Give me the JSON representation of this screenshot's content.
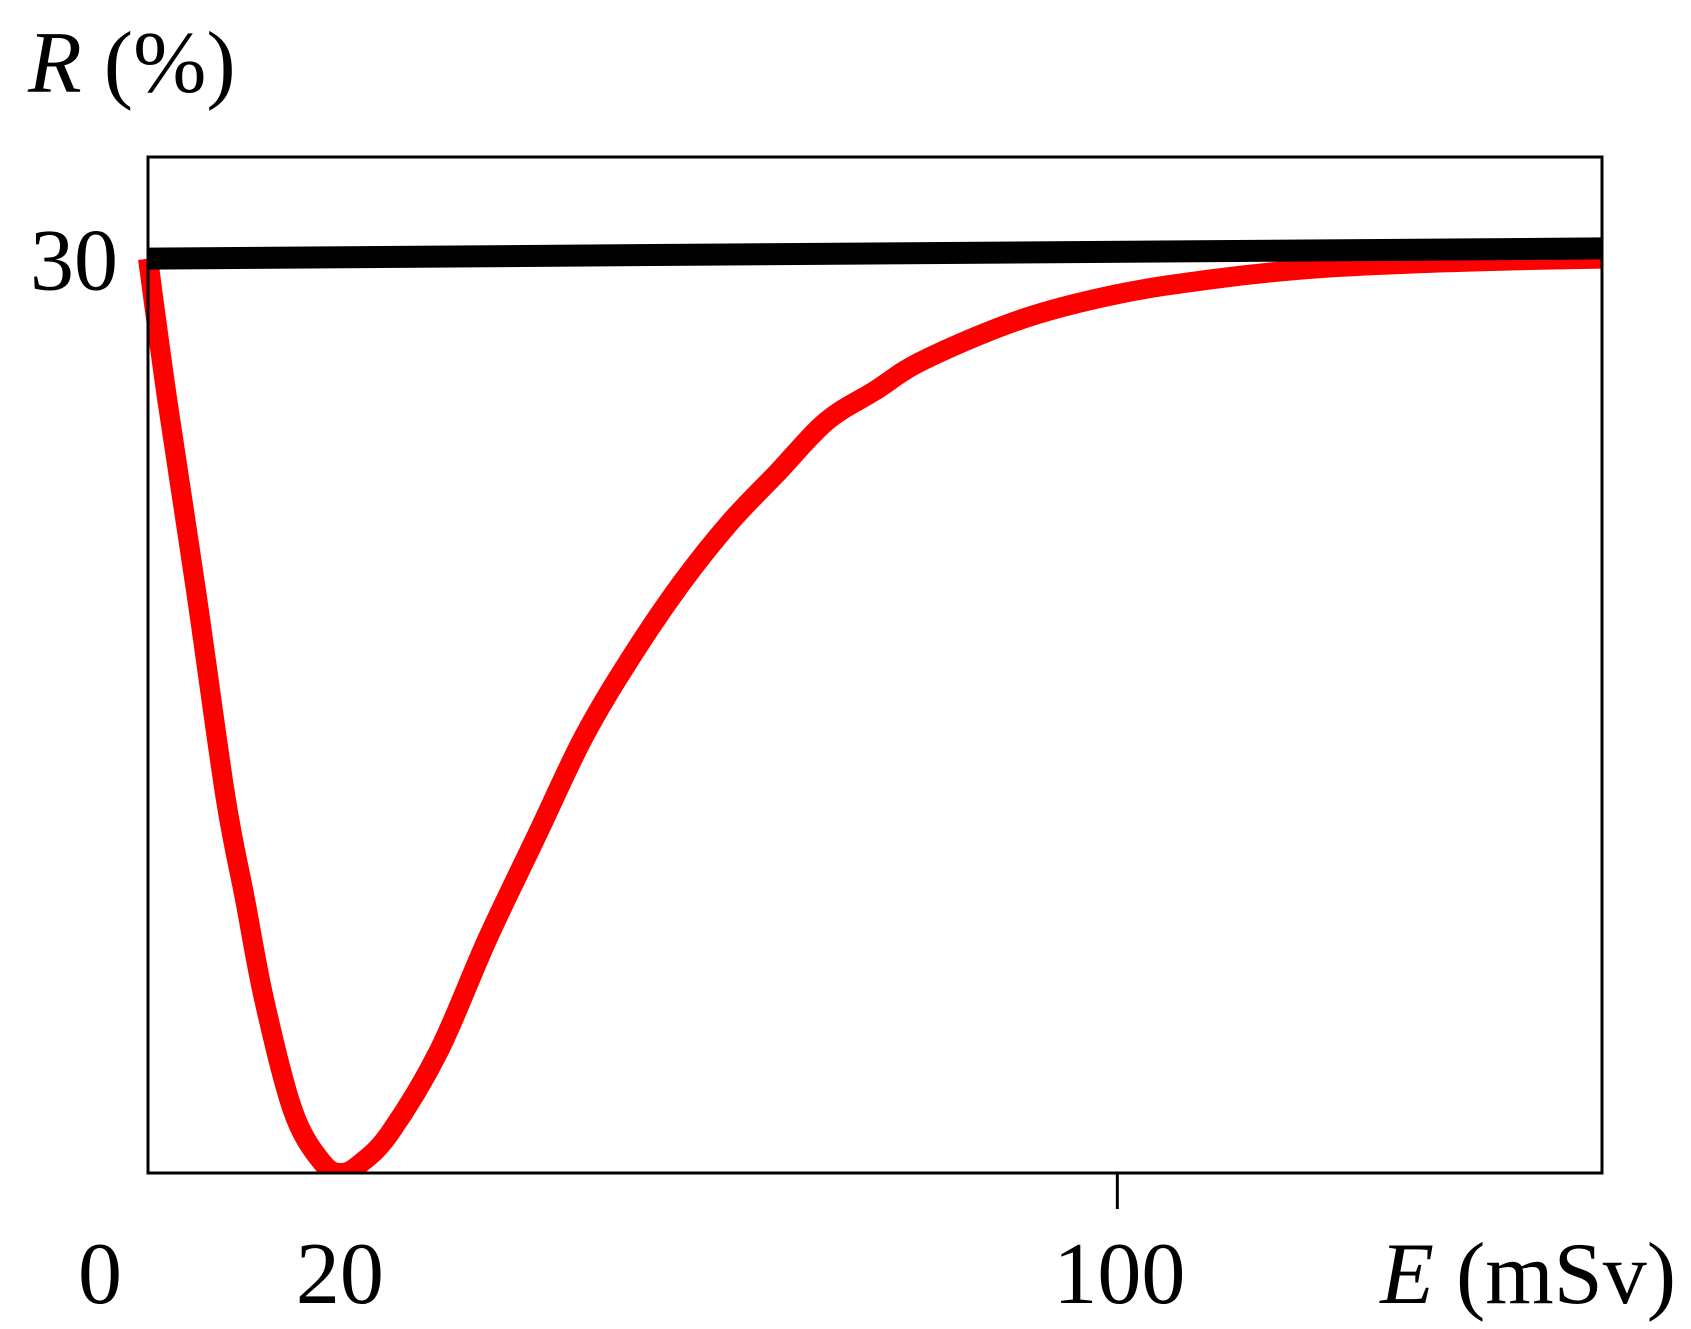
{
  "chart_data": {
    "type": "line",
    "ylabel": {
      "symbol": "R",
      "unit": "(%)"
    },
    "xlabel": {
      "symbol": "E",
      "unit": "(mSv)"
    },
    "xlim": [
      0,
      150
    ],
    "ylim": [
      -60,
      40
    ],
    "x_ticks": [
      {
        "value": 0,
        "label": "0"
      },
      {
        "value": 20,
        "label": "20"
      },
      {
        "value": 100,
        "label": "100"
      }
    ],
    "y_ticks": [
      {
        "value": 30,
        "label": "30"
      }
    ],
    "grid": false,
    "series": [
      {
        "color": "#000000",
        "x": [
          0,
          150
        ],
        "y": [
          30,
          31
        ]
      },
      {
        "color": "#ff0000",
        "x": [
          0,
          2,
          5,
          8,
          10,
          12,
          15,
          18,
          20,
          22,
          25,
          30,
          35,
          40,
          45,
          50,
          55,
          60,
          65,
          70,
          75,
          80,
          90,
          100,
          110,
          120,
          130,
          140,
          150
        ],
        "y": [
          30,
          16,
          -3,
          -23,
          -33,
          -43,
          -54,
          -59,
          -60,
          -59,
          -56,
          -48,
          -37,
          -27,
          -17,
          -9,
          -2,
          4,
          9,
          14,
          17,
          20,
          24,
          26.5,
          28,
          29,
          29.5,
          29.8,
          30
        ]
      }
    ],
    "colors": {
      "axis": "#000000",
      "background": "#ffffff"
    }
  }
}
